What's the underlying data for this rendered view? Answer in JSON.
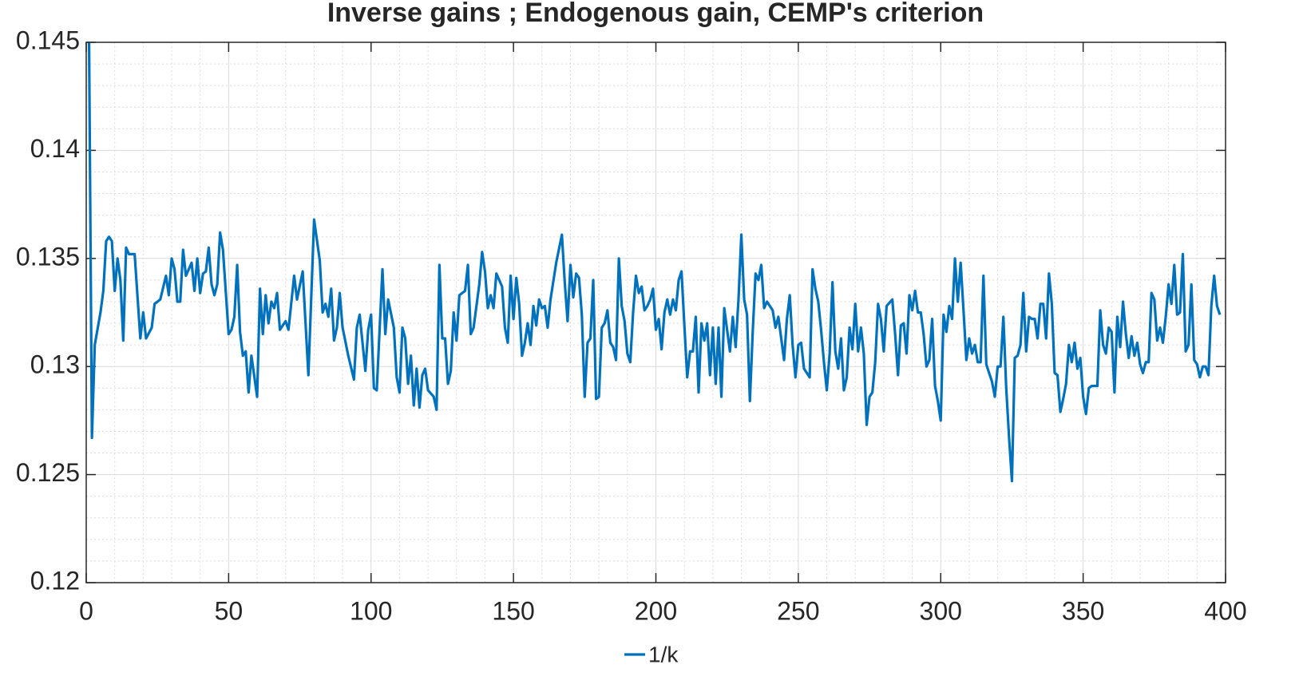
{
  "chart_data": {
    "type": "line",
    "title": "Inverse gains ; Endogenous gain, CEMP's criterion",
    "xlim": [
      0,
      400
    ],
    "xticks": [
      0,
      50,
      100,
      150,
      200,
      250,
      300,
      350,
      400
    ],
    "ylim": [
      0.12,
      0.145
    ],
    "yticks": [
      0.12,
      0.125,
      0.13,
      0.135,
      0.14,
      0.145
    ],
    "grid": true,
    "minor_grid": true,
    "legend": "south",
    "series": [
      {
        "name": "1/k",
        "color": "#0072BD",
        "x": [
          1,
          2,
          3,
          5,
          6,
          7,
          8,
          9,
          10,
          11,
          12,
          13,
          14,
          15,
          17,
          19,
          20,
          21,
          23,
          24,
          26,
          28,
          29,
          30,
          31,
          32,
          33,
          34,
          35,
          37,
          38,
          39,
          40,
          41,
          42,
          43,
          44,
          45,
          46,
          47,
          48,
          50,
          51,
          52,
          53,
          54,
          55,
          56,
          57,
          58,
          60,
          61,
          62,
          63,
          64,
          65,
          66,
          67,
          68,
          70,
          71,
          73,
          74,
          76,
          78,
          80,
          82,
          83,
          84,
          85,
          86,
          87,
          88,
          89,
          90,
          92,
          94,
          95,
          96,
          98,
          99,
          100,
          101,
          102,
          104,
          105,
          106,
          108,
          109,
          110,
          111,
          112,
          113,
          114,
          115,
          116,
          117,
          118,
          119,
          120,
          122,
          123,
          124,
          125,
          126,
          127,
          128,
          129,
          130,
          131,
          133,
          134,
          135,
          136,
          138,
          139,
          140,
          141,
          142,
          143,
          144,
          146,
          147,
          148,
          149,
          150,
          151,
          152,
          153,
          154,
          155,
          156,
          157,
          158,
          159,
          160,
          161,
          162,
          163,
          165,
          167,
          168,
          169,
          170,
          171,
          172,
          173,
          174,
          175,
          176,
          177,
          178,
          179,
          180,
          181,
          182,
          183,
          184,
          185,
          186,
          187,
          188,
          189,
          190,
          191,
          192,
          193,
          194,
          195,
          196,
          197,
          198,
          199,
          200,
          201,
          202,
          203,
          204,
          205,
          206,
          207,
          208,
          209,
          210,
          211,
          212,
          213,
          214,
          215,
          216,
          217,
          218,
          219,
          220,
          221,
          222,
          223,
          224,
          226,
          227,
          228,
          229,
          230,
          231,
          232,
          233,
          234,
          235,
          236,
          237,
          238,
          239,
          241,
          242,
          243,
          244,
          245,
          246,
          247,
          248,
          249,
          250,
          251,
          252,
          254,
          255,
          256,
          257,
          258,
          259,
          260,
          261,
          262,
          263,
          264,
          265,
          266,
          267,
          268,
          269,
          270,
          271,
          272,
          273,
          274,
          275,
          276,
          277,
          278,
          279,
          280,
          281,
          283,
          284,
          285,
          286,
          287,
          288,
          289,
          290,
          291,
          292,
          293,
          294,
          295,
          296,
          297,
          298,
          299,
          300,
          301,
          302,
          303,
          304,
          305,
          306,
          307,
          308,
          309,
          310,
          311,
          312,
          313,
          314,
          315,
          316,
          317,
          318,
          319,
          320,
          321,
          322,
          323,
          324,
          325,
          326,
          327,
          328,
          329,
          330,
          331,
          332,
          333,
          334,
          335,
          336,
          337,
          338,
          339,
          340,
          341,
          342,
          343,
          344,
          345,
          346,
          347,
          348,
          349,
          350,
          351,
          352,
          353,
          355,
          356,
          357,
          358,
          359,
          360,
          361,
          362,
          363,
          364,
          365,
          366,
          367,
          368,
          369,
          370,
          371,
          372,
          373,
          374,
          375,
          376,
          377,
          378,
          379,
          380,
          381,
          382,
          383,
          384,
          385,
          386,
          387,
          388,
          389,
          390,
          391,
          392,
          393,
          394,
          395,
          396,
          397,
          398
        ],
        "values": [
          0.145,
          0.1267,
          0.131,
          0.1325,
          0.1335,
          0.1358,
          0.136,
          0.1358,
          0.1335,
          0.135,
          0.134,
          0.1312,
          0.1355,
          0.1352,
          0.1352,
          0.1313,
          0.1325,
          0.1313,
          0.1318,
          0.1329,
          0.1331,
          0.1342,
          0.1333,
          0.135,
          0.1345,
          0.133,
          0.133,
          0.1354,
          0.1342,
          0.1348,
          0.1335,
          0.135,
          0.1334,
          0.1343,
          0.1344,
          0.1355,
          0.1338,
          0.1333,
          0.1338,
          0.1362,
          0.1354,
          0.1315,
          0.1317,
          0.1323,
          0.1347,
          0.1316,
          0.1305,
          0.1307,
          0.1288,
          0.1305,
          0.1286,
          0.1336,
          0.1315,
          0.1333,
          0.132,
          0.133,
          0.1327,
          0.1334,
          0.1317,
          0.1321,
          0.1317,
          0.1342,
          0.1331,
          0.1344,
          0.1296,
          0.1368,
          0.1349,
          0.1325,
          0.1329,
          0.1323,
          0.1336,
          0.1312,
          0.1318,
          0.1334,
          0.1318,
          0.1305,
          0.1294,
          0.1318,
          0.1324,
          0.1298,
          0.1317,
          0.1324,
          0.129,
          0.1289,
          0.1345,
          0.1315,
          0.1331,
          0.1318,
          0.1295,
          0.1288,
          0.1318,
          0.1313,
          0.1292,
          0.1305,
          0.1282,
          0.1299,
          0.1281,
          0.1296,
          0.1299,
          0.1289,
          0.1286,
          0.128,
          0.1347,
          0.1313,
          0.1313,
          0.1292,
          0.1298,
          0.1325,
          0.1312,
          0.1333,
          0.1335,
          0.1347,
          0.1315,
          0.1318,
          0.1338,
          0.1353,
          0.1344,
          0.1327,
          0.1333,
          0.1327,
          0.1343,
          0.1337,
          0.1318,
          0.1311,
          0.1342,
          0.1322,
          0.1341,
          0.1329,
          0.1305,
          0.1311,
          0.132,
          0.131,
          0.1328,
          0.1319,
          0.1331,
          0.1327,
          0.1328,
          0.1318,
          0.1331,
          0.1348,
          0.1361,
          0.1339,
          0.1321,
          0.1347,
          0.1332,
          0.1343,
          0.1341,
          0.1324,
          0.1286,
          0.1311,
          0.1313,
          0.134,
          0.1285,
          0.1286,
          0.1318,
          0.132,
          0.1326,
          0.1311,
          0.1309,
          0.1303,
          0.135,
          0.1328,
          0.1321,
          0.1306,
          0.1302,
          0.1325,
          0.1342,
          0.1334,
          0.1337,
          0.1326,
          0.1328,
          0.1331,
          0.1336,
          0.1317,
          0.1322,
          0.1308,
          0.1325,
          0.1331,
          0.1324,
          0.1331,
          0.1326,
          0.134,
          0.1344,
          0.1319,
          0.1295,
          0.1307,
          0.1307,
          0.1323,
          0.1288,
          0.132,
          0.1312,
          0.132,
          0.1296,
          0.1318,
          0.1292,
          0.1318,
          0.1286,
          0.1327,
          0.1307,
          0.1323,
          0.1309,
          0.1331,
          0.1361,
          0.1331,
          0.1324,
          0.1284,
          0.1316,
          0.1343,
          0.134,
          0.1347,
          0.1327,
          0.133,
          0.1326,
          0.1318,
          0.1323,
          0.1313,
          0.1303,
          0.1322,
          0.1333,
          0.131,
          0.1295,
          0.131,
          0.1311,
          0.1299,
          0.1295,
          0.1345,
          0.1336,
          0.133,
          0.1317,
          0.1302,
          0.1289,
          0.1306,
          0.1339,
          0.1307,
          0.1299,
          0.1313,
          0.1289,
          0.1295,
          0.1318,
          0.1308,
          0.1329,
          0.1307,
          0.1318,
          0.1306,
          0.1273,
          0.1286,
          0.1288,
          0.1302,
          0.1329,
          0.1322,
          0.1307,
          0.1328,
          0.1331,
          0.1315,
          0.1296,
          0.1319,
          0.132,
          0.1306,
          0.1333,
          0.1326,
          0.1335,
          0.1325,
          0.1325,
          0.1315,
          0.13,
          0.1303,
          0.1322,
          0.1291,
          0.1284,
          0.1275,
          0.1324,
          0.1316,
          0.1328,
          0.1322,
          0.135,
          0.133,
          0.1348,
          0.1326,
          0.1303,
          0.1313,
          0.1306,
          0.131,
          0.1302,
          0.1302,
          0.1342,
          0.1301,
          0.1297,
          0.1293,
          0.1286,
          0.13,
          0.13,
          0.1323,
          0.129,
          0.1267,
          0.1247,
          0.1304,
          0.1305,
          0.131,
          0.1334,
          0.1307,
          0.1323,
          0.1322,
          0.1322,
          0.1313,
          0.1329,
          0.1329,
          0.1313,
          0.1343,
          0.1329,
          0.1297,
          0.1296,
          0.1279,
          0.1285,
          0.1292,
          0.131,
          0.1302,
          0.1311,
          0.1299,
          0.1304,
          0.1286,
          0.1278,
          0.129,
          0.1291,
          0.1291,
          0.1326,
          0.131,
          0.1306,
          0.1318,
          0.1316,
          0.1288,
          0.1323,
          0.1309,
          0.133,
          0.1315,
          0.1304,
          0.1314,
          0.1305,
          0.1311,
          0.1301,
          0.1297,
          0.1302,
          0.1302,
          0.1334,
          0.1331,
          0.1312,
          0.1318,
          0.1311,
          0.1323,
          0.1338,
          0.1329,
          0.1347,
          0.1324,
          0.1325,
          0.1352,
          0.1307,
          0.131,
          0.1338,
          0.1303,
          0.1301,
          0.1295,
          0.13,
          0.13,
          0.1296,
          0.1328,
          0.1342,
          0.1328,
          0.1324
        ]
      }
    ]
  }
}
